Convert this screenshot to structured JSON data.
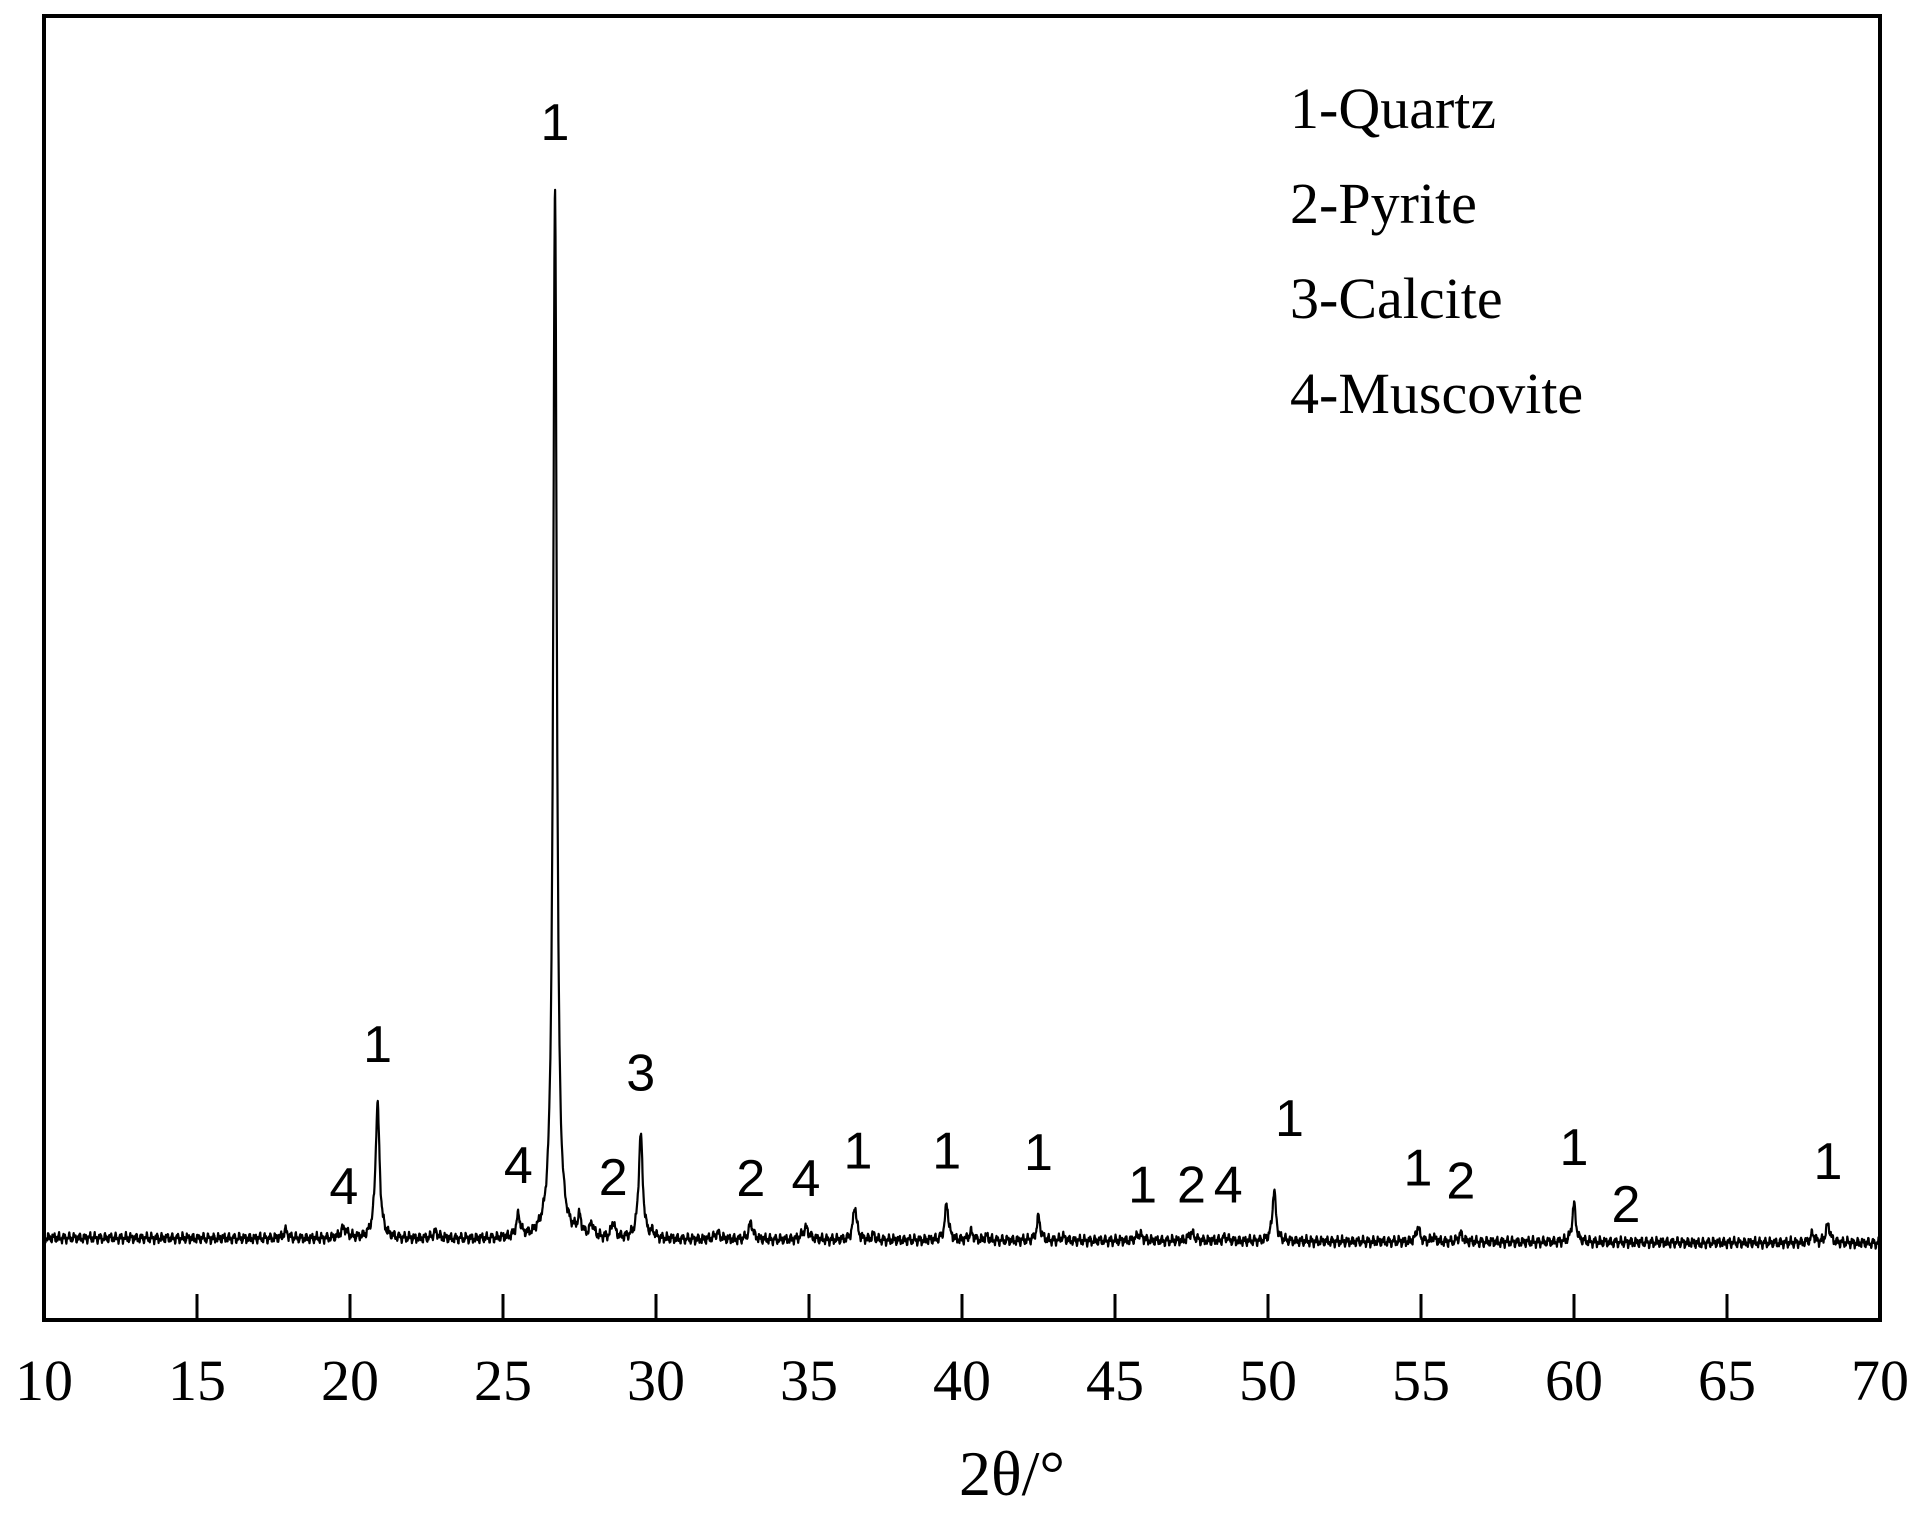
{
  "chart_data": {
    "type": "line",
    "title": "",
    "xlabel": "2θ/°",
    "ylabel": "",
    "xlim": [
      10,
      70
    ],
    "ylim": [
      0,
      100
    ],
    "xticks": [
      "10",
      "15",
      "20",
      "25",
      "30",
      "35",
      "40",
      "45",
      "50",
      "55",
      "60",
      "65",
      "70"
    ],
    "grid": false,
    "legend_position": "top-right",
    "legend": [
      "1-Quartz",
      "2-Pyrite",
      "3-Calcite",
      "4-Muscovite"
    ],
    "baseline": 6.3,
    "peaks": [
      {
        "x": 17.9,
        "y": 6.9,
        "w": 0.08
      },
      {
        "x": 19.8,
        "y": 7.1,
        "w": 0.12
      },
      {
        "x": 20.9,
        "y": 16.6,
        "w": 0.08
      },
      {
        "x": 22.8,
        "y": 6.8,
        "w": 0.1
      },
      {
        "x": 25.5,
        "y": 7.9,
        "w": 0.08
      },
      {
        "x": 26.7,
        "y": 87.2,
        "w": 0.07
      },
      {
        "x": 27.5,
        "y": 7.6,
        "w": 0.07
      },
      {
        "x": 27.9,
        "y": 7.3,
        "w": 0.07
      },
      {
        "x": 28.6,
        "y": 7.5,
        "w": 0.07
      },
      {
        "x": 29.5,
        "y": 14.3,
        "w": 0.08
      },
      {
        "x": 29.9,
        "y": 6.7,
        "w": 0.07
      },
      {
        "x": 32.0,
        "y": 6.8,
        "w": 0.1
      },
      {
        "x": 33.1,
        "y": 7.6,
        "w": 0.08
      },
      {
        "x": 34.9,
        "y": 7.2,
        "w": 0.12
      },
      {
        "x": 36.5,
        "y": 8.9,
        "w": 0.07
      },
      {
        "x": 37.1,
        "y": 6.7,
        "w": 0.06
      },
      {
        "x": 39.5,
        "y": 9.1,
        "w": 0.07
      },
      {
        "x": 40.3,
        "y": 6.9,
        "w": 0.08
      },
      {
        "x": 40.8,
        "y": 6.6,
        "w": 0.07
      },
      {
        "x": 42.5,
        "y": 8.1,
        "w": 0.07
      },
      {
        "x": 43.3,
        "y": 6.6,
        "w": 0.08
      },
      {
        "x": 45.8,
        "y": 6.8,
        "w": 0.12
      },
      {
        "x": 47.5,
        "y": 6.9,
        "w": 0.12
      },
      {
        "x": 48.6,
        "y": 6.6,
        "w": 0.1
      },
      {
        "x": 50.2,
        "y": 10.2,
        "w": 0.07
      },
      {
        "x": 54.9,
        "y": 7.4,
        "w": 0.07
      },
      {
        "x": 55.4,
        "y": 6.6,
        "w": 0.08
      },
      {
        "x": 56.3,
        "y": 6.9,
        "w": 0.08
      },
      {
        "x": 60.0,
        "y": 9.2,
        "w": 0.07
      },
      {
        "x": 61.6,
        "y": 6.3,
        "w": 0.12
      },
      {
        "x": 64.1,
        "y": 6.2,
        "w": 0.1
      },
      {
        "x": 67.8,
        "y": 7.0,
        "w": 0.07
      },
      {
        "x": 68.3,
        "y": 7.7,
        "w": 0.08
      }
    ],
    "annotations": [
      {
        "text": "1",
        "x": 26.7,
        "y": 90.5
      },
      {
        "text": "1",
        "x": 20.9,
        "y": 19.8
      },
      {
        "text": "4",
        "x": 19.8,
        "y": 8.9
      },
      {
        "text": "4",
        "x": 25.5,
        "y": 10.5
      },
      {
        "text": "2",
        "x": 28.6,
        "y": 9.6
      },
      {
        "text": "3",
        "x": 29.5,
        "y": 17.6
      },
      {
        "text": "2",
        "x": 33.1,
        "y": 9.5
      },
      {
        "text": "4",
        "x": 34.9,
        "y": 9.5
      },
      {
        "text": "1",
        "x": 36.6,
        "y": 11.6
      },
      {
        "text": "1",
        "x": 39.5,
        "y": 11.6
      },
      {
        "text": "1",
        "x": 42.5,
        "y": 11.5
      },
      {
        "text": "1",
        "x": 45.9,
        "y": 9.0
      },
      {
        "text": "2",
        "x": 47.5,
        "y": 9.0
      },
      {
        "text": "4",
        "x": 48.7,
        "y": 9.0
      },
      {
        "text": "1",
        "x": 50.7,
        "y": 14.1
      },
      {
        "text": "1",
        "x": 54.9,
        "y": 10.3
      },
      {
        "text": "2",
        "x": 56.3,
        "y": 9.3
      },
      {
        "text": "1",
        "x": 60.0,
        "y": 11.9
      },
      {
        "text": "2",
        "x": 61.7,
        "y": 7.5
      },
      {
        "text": "1",
        "x": 68.3,
        "y": 10.8
      }
    ]
  }
}
